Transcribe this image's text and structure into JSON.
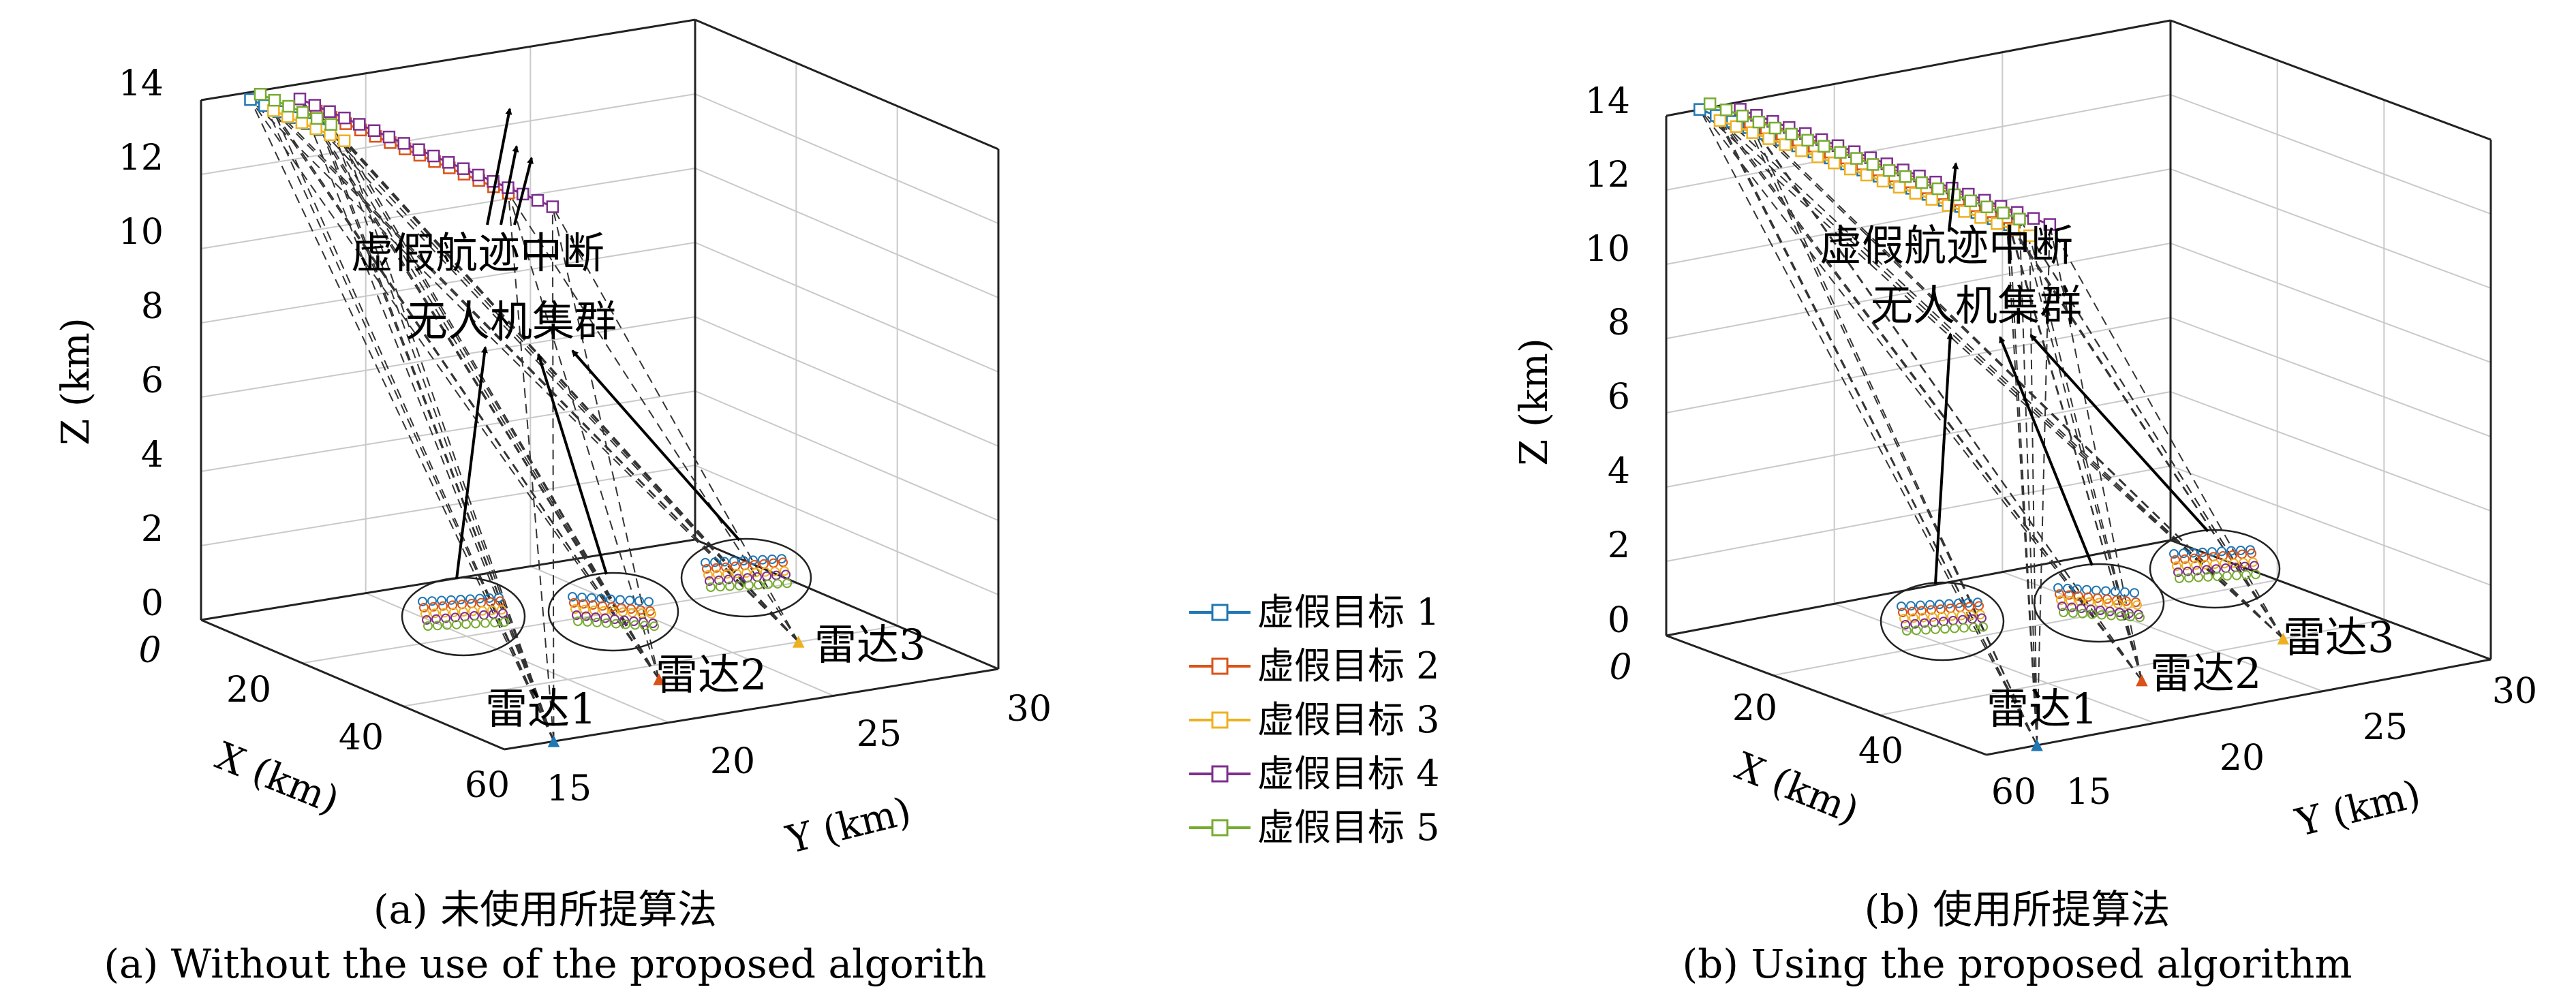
{
  "legend": [
    {
      "label": "虚假目标 1",
      "color": "#1f77b4"
    },
    {
      "label": "虚假目标 2",
      "color": "#d95319"
    },
    {
      "label": "虚假目标 3",
      "color": "#edb120"
    },
    {
      "label": "虚假目标 4",
      "color": "#7e2f8e"
    },
    {
      "label": "虚假目标 5",
      "color": "#77ac30"
    }
  ],
  "chart_data": [
    {
      "type": "scatter",
      "xlabel": "X (km)",
      "ylabel": "Y (km)",
      "zlabel": "Z (km)",
      "xlim": [
        0,
        60
      ],
      "ylim": [
        15,
        30
      ],
      "zlim": [
        0,
        14
      ],
      "x_ticks": [
        "0",
        "20",
        "40",
        "60"
      ],
      "y_ticks": [
        "15",
        "20",
        "25",
        "30"
      ],
      "z_ticks": [
        "0",
        "2",
        "4",
        "6",
        "8",
        "10",
        "12",
        "14"
      ],
      "grid": true,
      "annotations": [
        "虚假航迹中断",
        "无人机集群"
      ],
      "radars": [
        {
          "label": "雷达1",
          "x": 60,
          "y": 16.5,
          "z": 0
        },
        {
          "label": "雷达2",
          "x": 45,
          "y": 22,
          "z": 0
        },
        {
          "label": "雷达3",
          "x": 40,
          "y": 27,
          "z": 0
        }
      ],
      "false_targets": [
        {
          "name": "虚假目标 1",
          "x_start": 0,
          "x_end": 14,
          "y": 16.5,
          "z": 13.8
        },
        {
          "name": "虚假目标 2",
          "x_start": 0,
          "x_end": 38,
          "y": 18.5,
          "z": 13.2
        },
        {
          "name": "虚假目标 3",
          "x_start": 0,
          "x_end": 14,
          "y": 17.2,
          "z": 13.4
        },
        {
          "name": "虚假目标 4",
          "x_start": 0,
          "x_end": 50,
          "y": 18,
          "z": 13.6
        },
        {
          "name": "虚假目标 5",
          "x_start": 0,
          "x_end": 14,
          "y": 16.8,
          "z": 13.9
        }
      ],
      "caption": "(a) 未使用所提算法",
      "caption_en": "(a) Without the use of the proposed algorith"
    },
    {
      "type": "scatter",
      "xlabel": "X (km)",
      "ylabel": "Y (km)",
      "zlabel": "Z (km)",
      "xlim": [
        0,
        60
      ],
      "ylim": [
        15,
        30
      ],
      "zlim": [
        0,
        14
      ],
      "x_ticks": [
        "0",
        "20",
        "40",
        "60"
      ],
      "y_ticks": [
        "15",
        "20",
        "25",
        "30"
      ],
      "z_ticks": [
        "0",
        "2",
        "4",
        "6",
        "8",
        "10",
        "12",
        "14"
      ],
      "grid": true,
      "annotations": [
        "虚假航迹中断",
        "无人机集群"
      ],
      "radars": [
        {
          "label": "雷达1",
          "x": 60,
          "y": 16.5,
          "z": 0
        },
        {
          "label": "雷达2",
          "x": 45,
          "y": 22,
          "z": 0
        },
        {
          "label": "雷达3",
          "x": 40,
          "y": 27,
          "z": 0
        }
      ],
      "false_targets": [
        {
          "name": "虚假目标 1",
          "x_start": 0,
          "x_end": 58,
          "y": 16,
          "z": 14
        },
        {
          "name": "虚假目标 2",
          "x_start": 0,
          "x_end": 48,
          "y": 17.5,
          "z": 13.4
        },
        {
          "name": "虚假目标 3",
          "x_start": 0,
          "x_end": 58,
          "y": 16.6,
          "z": 13.6
        },
        {
          "name": "虚假目标 4",
          "x_start": 0,
          "x_end": 58,
          "y": 17.2,
          "z": 13.8
        },
        {
          "name": "虚假目标 5",
          "x_start": 0,
          "x_end": 58,
          "y": 16.3,
          "z": 14.1
        }
      ],
      "caption": "(b) 使用所提算法",
      "caption_en": "(b) Using the proposed algorithm"
    }
  ]
}
